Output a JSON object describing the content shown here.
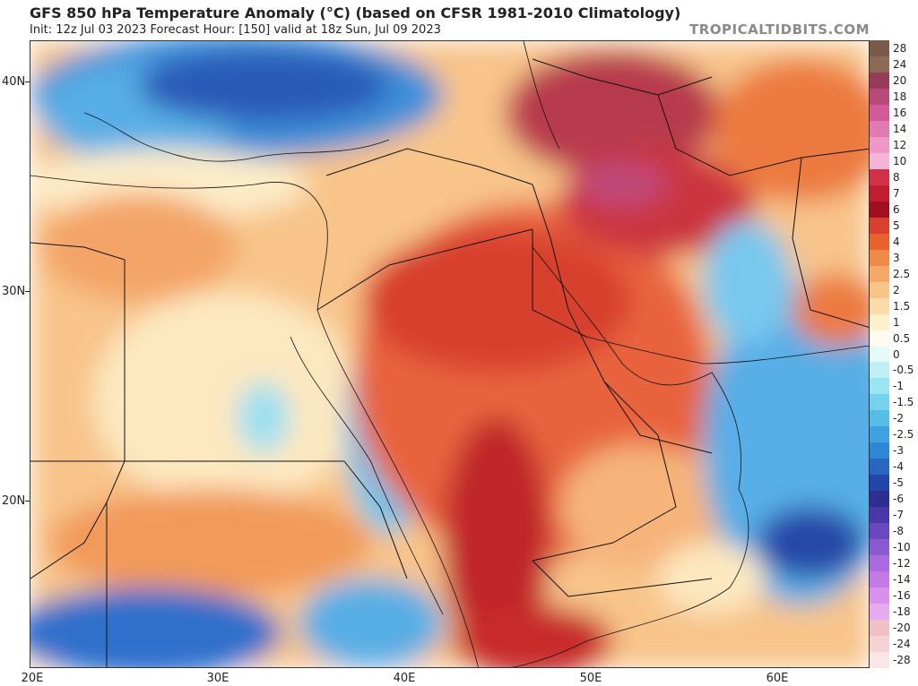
{
  "header": {
    "title": "GFS 850 hPa Temperature Anomaly (°C) (based on CFSR 1981-2010 Climatology)",
    "subtitle": "Init: 12z Jul 03 2023   Forecast Hour: [150]   valid at 18z Sun, Jul 09 2023",
    "watermark": "TROPICALTIDBITS.COM"
  },
  "map": {
    "lon_range": [
      20,
      65
    ],
    "lat_range": [
      12,
      42
    ],
    "lat_labels": [
      {
        "lat": 40,
        "text": "40N"
      },
      {
        "lat": 30,
        "text": "30N"
      },
      {
        "lat": 20,
        "text": "20N"
      }
    ],
    "lon_labels": [
      {
        "lon": 20,
        "text": "20E"
      },
      {
        "lon": 30,
        "text": "30E"
      },
      {
        "lon": 40,
        "text": "40E"
      },
      {
        "lon": 50,
        "text": "50E"
      },
      {
        "lon": 60,
        "text": "60E"
      }
    ]
  },
  "colorbar": {
    "labels": [
      "28",
      "24",
      "20",
      "18",
      "16",
      "14",
      "12",
      "10",
      "8",
      "7",
      "6",
      "5",
      "4",
      "3",
      "2.5",
      "2",
      "1.5",
      "1",
      "0.5",
      "0",
      "-0.5",
      "-1",
      "-1.5",
      "-2",
      "-2.5",
      "-3",
      "-4",
      "-5",
      "-6",
      "-7",
      "-8",
      "-10",
      "-12",
      "-14",
      "-16",
      "-18",
      "-20",
      "-24",
      "-28"
    ],
    "colors": [
      "#7a5a4a",
      "#8c6a58",
      "#9a3a5a",
      "#b84a78",
      "#d25a98",
      "#e07ab2",
      "#ee98c8",
      "#f4b6d8",
      "#d23048",
      "#c01e30",
      "#a01020",
      "#d84030",
      "#e8602e",
      "#f08a48",
      "#f5a868",
      "#f8c488",
      "#fbdca8",
      "#fdf0cc",
      "#fffaf0",
      "#e6fafa",
      "#bff0f6",
      "#9be4f2",
      "#78d2ee",
      "#58bce8",
      "#3ea2e0",
      "#2e86d4",
      "#2866c0",
      "#2346a8",
      "#2c2e90",
      "#4a38a8",
      "#6a48c0",
      "#8a5ad0",
      "#aa6ae0",
      "#c47ae6",
      "#d890ec",
      "#e6aaf0",
      "#f0c0c8",
      "#f6d2d4",
      "#fae6e6"
    ]
  },
  "colors": {
    "very_warm": "#c02a2a",
    "warm": "#e2583a",
    "mild_warm": "#f28c52",
    "slight_warm": "#f8c08a",
    "neutral": "#fdf2d8",
    "slight_cool": "#a8e0ee",
    "cool": "#3e8fd8",
    "very_cool": "#2548a8",
    "very_high": "#c0487a"
  }
}
